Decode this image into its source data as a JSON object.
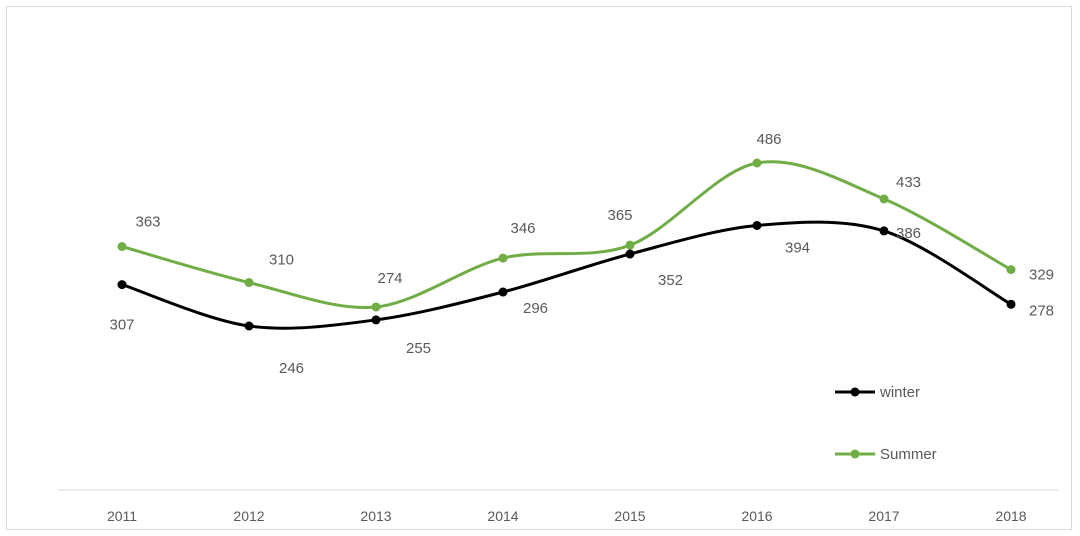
{
  "chart_data": {
    "type": "line",
    "title": "",
    "xlabel": "",
    "ylabel": "",
    "categories": [
      "2011",
      "2012",
      "2013",
      "2014",
      "2015",
      "2016",
      "2017",
      "2018"
    ],
    "series": [
      {
        "name": "winter",
        "color": "#000000",
        "values": [
          307,
          246,
          255,
          296,
          352,
          394,
          386,
          278
        ]
      },
      {
        "name": "Summer",
        "color": "#70ad47",
        "values": [
          363,
          310,
          274,
          346,
          365,
          486,
          433,
          329
        ]
      }
    ],
    "grid": false,
    "smooth": true,
    "legend_position": "right-bottom",
    "data_labels": true
  }
}
